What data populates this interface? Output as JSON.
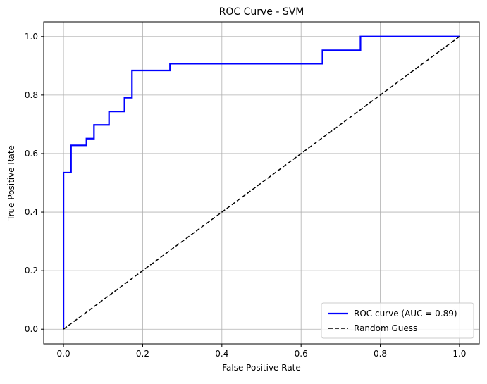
{
  "chart_data": {
    "type": "line",
    "title": "ROC Curve - SVM",
    "xlabel": "False Positive Rate",
    "ylabel": "True Positive Rate",
    "xlim": [
      -0.05,
      1.05
    ],
    "ylim": [
      -0.05,
      1.05
    ],
    "xticks": [
      0.0,
      0.2,
      0.4,
      0.6,
      0.8,
      1.0
    ],
    "yticks": [
      0.0,
      0.2,
      0.4,
      0.6,
      0.8,
      1.0
    ],
    "xtick_labels": [
      "0.0",
      "0.2",
      "0.4",
      "0.6",
      "0.8",
      "1.0"
    ],
    "ytick_labels": [
      "0.0",
      "0.2",
      "0.4",
      "0.6",
      "0.8",
      "1.0"
    ],
    "grid": true,
    "legend_position": "lower-right",
    "series": [
      {
        "name": "ROC curve (AUC = 0.89)",
        "style": "solid",
        "color": "#0000ff",
        "x": [
          0.0,
          0.0,
          0.019,
          0.019,
          0.058,
          0.058,
          0.077,
          0.077,
          0.115,
          0.115,
          0.154,
          0.154,
          0.173,
          0.173,
          0.269,
          0.269,
          0.654,
          0.654,
          0.75,
          0.75,
          1.0
        ],
        "y": [
          0.0,
          0.535,
          0.535,
          0.628,
          0.628,
          0.651,
          0.651,
          0.698,
          0.698,
          0.744,
          0.744,
          0.791,
          0.791,
          0.884,
          0.884,
          0.907,
          0.907,
          0.953,
          0.953,
          1.0,
          1.0
        ]
      },
      {
        "name": "Random Guess",
        "style": "dashed",
        "color": "#000000",
        "x": [
          0.0,
          1.0
        ],
        "y": [
          0.0,
          1.0
        ]
      }
    ]
  }
}
